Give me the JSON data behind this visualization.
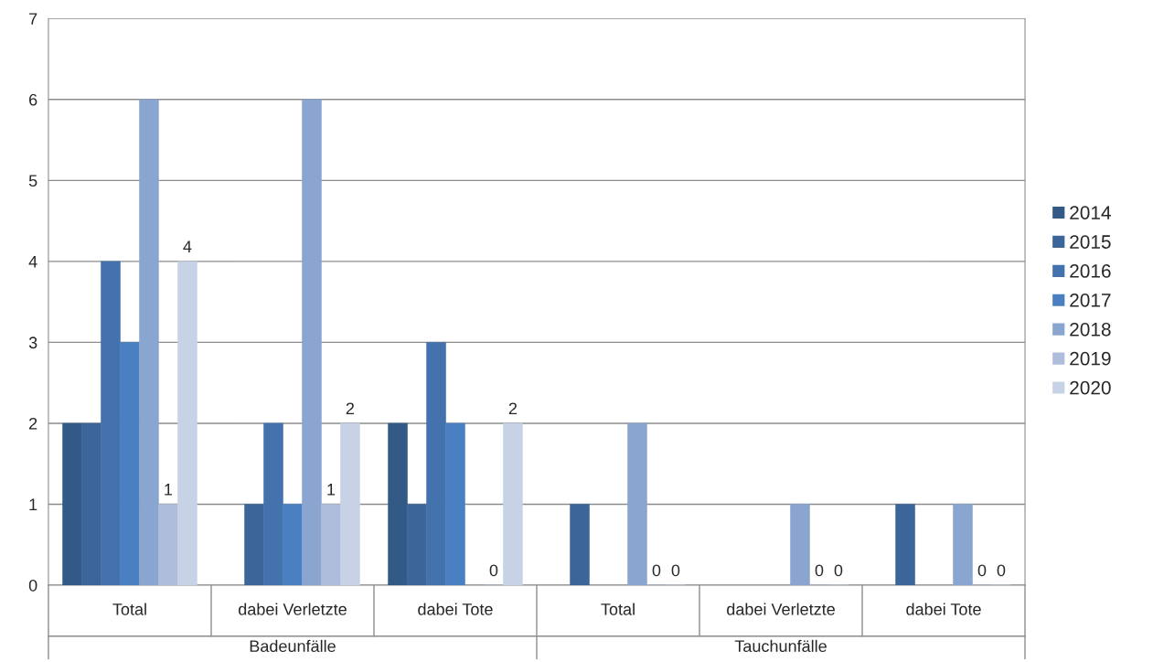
{
  "chart_data": {
    "type": "bar",
    "categories": [
      "Total",
      "dabei Verletzte",
      "dabei Tote",
      "Total",
      "dabei Verletzte",
      "dabei Tote"
    ],
    "series": [
      {
        "name": "2014",
        "color": "#335a87",
        "values": [
          2,
          null,
          2,
          null,
          null,
          null
        ]
      },
      {
        "name": "2015",
        "color": "#3c6699",
        "values": [
          2,
          1,
          1,
          1,
          null,
          1
        ]
      },
      {
        "name": "2016",
        "color": "#4472ad",
        "values": [
          4,
          2,
          3,
          null,
          null,
          null
        ]
      },
      {
        "name": "2017",
        "color": "#4a80c2",
        "values": [
          3,
          1,
          2,
          null,
          null,
          null
        ]
      },
      {
        "name": "2018",
        "color": "#8aa5cf",
        "values": [
          6,
          6,
          null,
          2,
          1,
          1
        ]
      },
      {
        "name": "2019",
        "color": "#adbddb",
        "values": [
          1,
          1,
          0,
          0,
          0,
          0
        ],
        "value_labels": [
          "1",
          "1",
          "0",
          "0",
          "0",
          "0"
        ]
      },
      {
        "name": "2020",
        "color": "#c7d2e6",
        "values": [
          4,
          2,
          2,
          0,
          0,
          0
        ],
        "value_labels": [
          "4",
          "2",
          "2",
          "0",
          "0",
          "0"
        ]
      }
    ],
    "annotations": [
      "Badeunfälle",
      "Tauchunfälle"
    ],
    "ylim": [
      0,
      7
    ],
    "yticks": [
      0,
      1,
      2,
      3,
      4,
      5,
      6,
      7
    ],
    "grid": "y",
    "legend": "right"
  }
}
